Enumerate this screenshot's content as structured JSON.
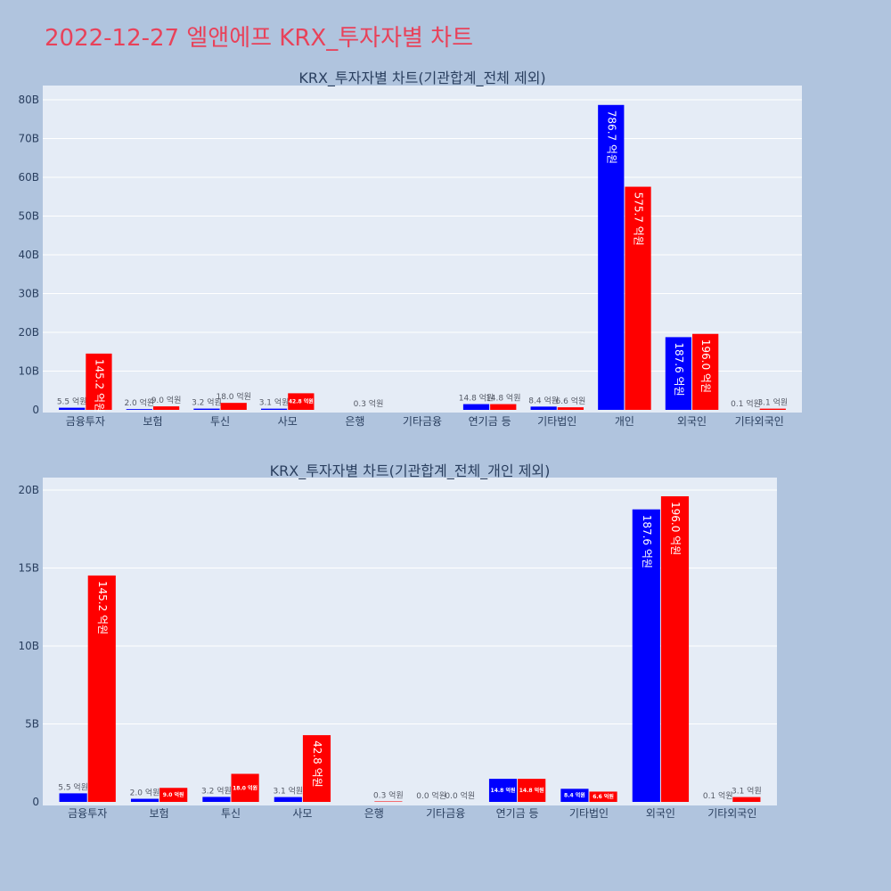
{
  "page": {
    "title": "2022-12-27 엘앤에프 KRX_투자자별 차트",
    "title_color": "#e8425a",
    "background_color": "#b0c4de",
    "plot_background_color": "#e5ecf6"
  },
  "chart_data": [
    {
      "type": "bar",
      "title": "KRX_투자자별 차트(기관합계_전체 제외)",
      "xlabel": "",
      "ylabel": "",
      "categories": [
        "금융투자",
        "보험",
        "투신",
        "사모",
        "은행",
        "기타금융",
        "연기금 등",
        "기타법인",
        "개인",
        "외국인",
        "기타외국인"
      ],
      "ylim": [
        0,
        80
      ],
      "y_unit": "B",
      "y_ticks": [
        "0",
        "10B",
        "20B",
        "30B",
        "40B",
        "50B",
        "60B",
        "70B",
        "80B"
      ],
      "grid": true,
      "series": [
        {
          "color": "#0000ff",
          "values": [
            0.55,
            0.2,
            0.32,
            0.31,
            null,
            null,
            1.48,
            0.84,
            78.67,
            18.76,
            0.01
          ],
          "labels": [
            "5.5 억원",
            "2.0 억원",
            "3.2 억원",
            "3.1 억원",
            "",
            "",
            "14.8 억원",
            "8.4 억원",
            "786.7 억원",
            "187.6 억원",
            "0.1 억원"
          ]
        },
        {
          "color": "#ff0000",
          "values": [
            14.52,
            0.9,
            1.8,
            4.28,
            0.03,
            null,
            1.48,
            0.66,
            57.57,
            19.6,
            0.31
          ],
          "labels": [
            "145.2 억원",
            "9.0 억원",
            "18.0 억원",
            "42.8 억원",
            "0.3 억원",
            "",
            "14.8 억원",
            "6.6 억원",
            "575.7 억원",
            "196.0 억원",
            "3.1 억원"
          ]
        }
      ]
    },
    {
      "type": "bar",
      "title": "KRX_투자자별 차트(기관합계_전체_개인 제외)",
      "xlabel": "",
      "ylabel": "",
      "categories": [
        "금융투자",
        "보험",
        "투신",
        "사모",
        "은행",
        "기타금융",
        "연기금 등",
        "기타법인",
        "외국인",
        "기타외국인"
      ],
      "ylim": [
        0,
        20
      ],
      "y_unit": "B",
      "y_ticks": [
        "0",
        "5B",
        "10B",
        "15B",
        "20B"
      ],
      "grid": true,
      "series": [
        {
          "color": "#0000ff",
          "values": [
            0.55,
            0.2,
            0.32,
            0.31,
            null,
            0.0,
            1.48,
            0.84,
            18.76,
            0.01
          ],
          "labels": [
            "5.5 억원",
            "2.0 억원",
            "3.2 억원",
            "3.1 억원",
            "",
            "0.0 억원",
            "14.8 억원",
            "8.4 억원",
            "187.6 억원",
            "0.1 억원"
          ]
        },
        {
          "color": "#ff0000",
          "values": [
            14.52,
            0.9,
            1.8,
            4.28,
            0.03,
            0.0,
            1.48,
            0.66,
            19.6,
            0.31
          ],
          "labels": [
            "145.2 억원",
            "9.0 억원",
            "18.0 억원",
            "42.8 억원",
            "0.3 억원",
            "0.0 억원",
            "14.8 억원",
            "6.6 억원",
            "196.0 억원",
            "3.1 억원"
          ]
        }
      ]
    }
  ]
}
